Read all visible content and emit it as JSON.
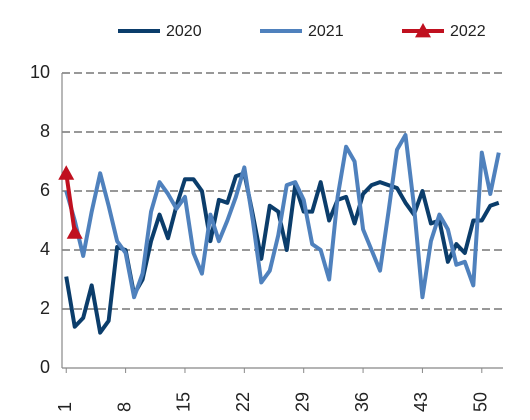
{
  "chart_data": {
    "type": "line",
    "x": [
      1,
      2,
      3,
      4,
      5,
      6,
      7,
      8,
      9,
      10,
      11,
      12,
      13,
      14,
      15,
      16,
      17,
      18,
      19,
      20,
      21,
      22,
      23,
      24,
      25,
      26,
      27,
      28,
      29,
      30,
      31,
      32,
      33,
      34,
      35,
      36,
      37,
      38,
      39,
      40,
      41,
      42,
      43,
      44,
      45,
      46,
      47,
      48,
      49,
      50,
      51,
      52
    ],
    "series": [
      {
        "name": "2020",
        "color": "#0b3d6b",
        "values": [
          3.1,
          1.4,
          1.7,
          2.8,
          1.2,
          1.6,
          4.1,
          4.0,
          2.5,
          3.0,
          4.3,
          5.2,
          4.4,
          5.5,
          6.4,
          6.4,
          6.0,
          4.3,
          5.7,
          5.6,
          6.5,
          6.6,
          5.2,
          3.7,
          5.5,
          5.3,
          4.0,
          6.2,
          5.3,
          5.3,
          6.3,
          5.0,
          5.7,
          5.8,
          4.9,
          5.9,
          6.2,
          6.3,
          6.2,
          6.1,
          5.6,
          5.2,
          6.0,
          4.9,
          5.0,
          3.6,
          4.2,
          3.9,
          5.0,
          5.0,
          5.5,
          5.6
        ]
      },
      {
        "name": "2021",
        "color": "#4f81bd",
        "values": [
          6.0,
          5.0,
          3.8,
          5.3,
          6.6,
          5.5,
          4.3,
          3.9,
          2.4,
          3.2,
          5.3,
          6.3,
          5.9,
          5.4,
          5.8,
          3.9,
          3.2,
          5.2,
          4.3,
          5.0,
          5.8,
          6.8,
          5.0,
          2.9,
          3.3,
          4.5,
          6.2,
          6.3,
          5.7,
          4.2,
          4.0,
          3.0,
          5.8,
          7.5,
          7.0,
          4.7,
          4.0,
          3.3,
          5.3,
          7.4,
          7.9,
          5.5,
          2.4,
          4.3,
          5.2,
          4.7,
          3.5,
          3.6,
          2.8,
          7.3,
          5.9,
          7.3
        ]
      },
      {
        "name": "2022",
        "color": "#c0101f",
        "marker": "triangle",
        "values": [
          6.6,
          4.6,
          null,
          null,
          null,
          null,
          null,
          null,
          null,
          null,
          null,
          null,
          null,
          null,
          null,
          null,
          null,
          null,
          null,
          null,
          null,
          null,
          null,
          null,
          null,
          null,
          null,
          null,
          null,
          null,
          null,
          null,
          null,
          null,
          null,
          null,
          null,
          null,
          null,
          null,
          null,
          null,
          null,
          null,
          null,
          null,
          null,
          null,
          null,
          null,
          null,
          null
        ]
      }
    ],
    "xlim": [
      0.5,
      52.5
    ],
    "xticks": [
      1,
      8,
      15,
      22,
      29,
      36,
      43,
      50
    ],
    "ylim": [
      0,
      10
    ],
    "yticks": [
      0,
      2,
      4,
      6,
      8,
      10
    ],
    "grid": true,
    "legend": "top"
  }
}
